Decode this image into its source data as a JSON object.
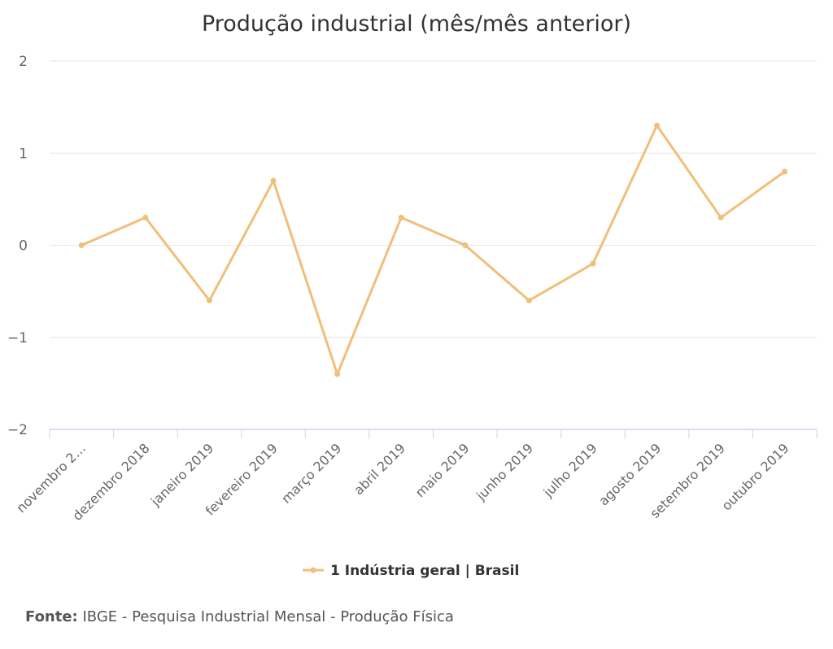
{
  "chart_data": {
    "type": "line",
    "title": "Produção industrial (mês/mês anterior)",
    "categories": [
      "novembro 2…",
      "dezembro 2018",
      "janeiro 2019",
      "fevereiro 2019",
      "março 2019",
      "abril 2019",
      "maio 2019",
      "junho 2019",
      "julho 2019",
      "agosto 2019",
      "setembro 2019",
      "outubro 2019"
    ],
    "series": [
      {
        "name": "1 Indústria geral | Brasil",
        "values": [
          0.0,
          0.3,
          -0.6,
          0.7,
          -1.4,
          0.3,
          0.0,
          -0.6,
          -0.2,
          1.3,
          0.3,
          0.8
        ],
        "color": "#f0bf7a"
      }
    ],
    "yticks": [
      "2",
      "1",
      "0",
      "−1",
      "−2"
    ],
    "ylim": [
      -2,
      2
    ],
    "grid": true,
    "legend": "bottom-center"
  },
  "source": {
    "label": "Fonte:",
    "text": "IBGE - Pesquisa Industrial Mensal - Produção Física"
  },
  "colors": {
    "grid": "#e6e6e6",
    "axis": "#ccd6eb",
    "line": "#f0bf7a"
  }
}
